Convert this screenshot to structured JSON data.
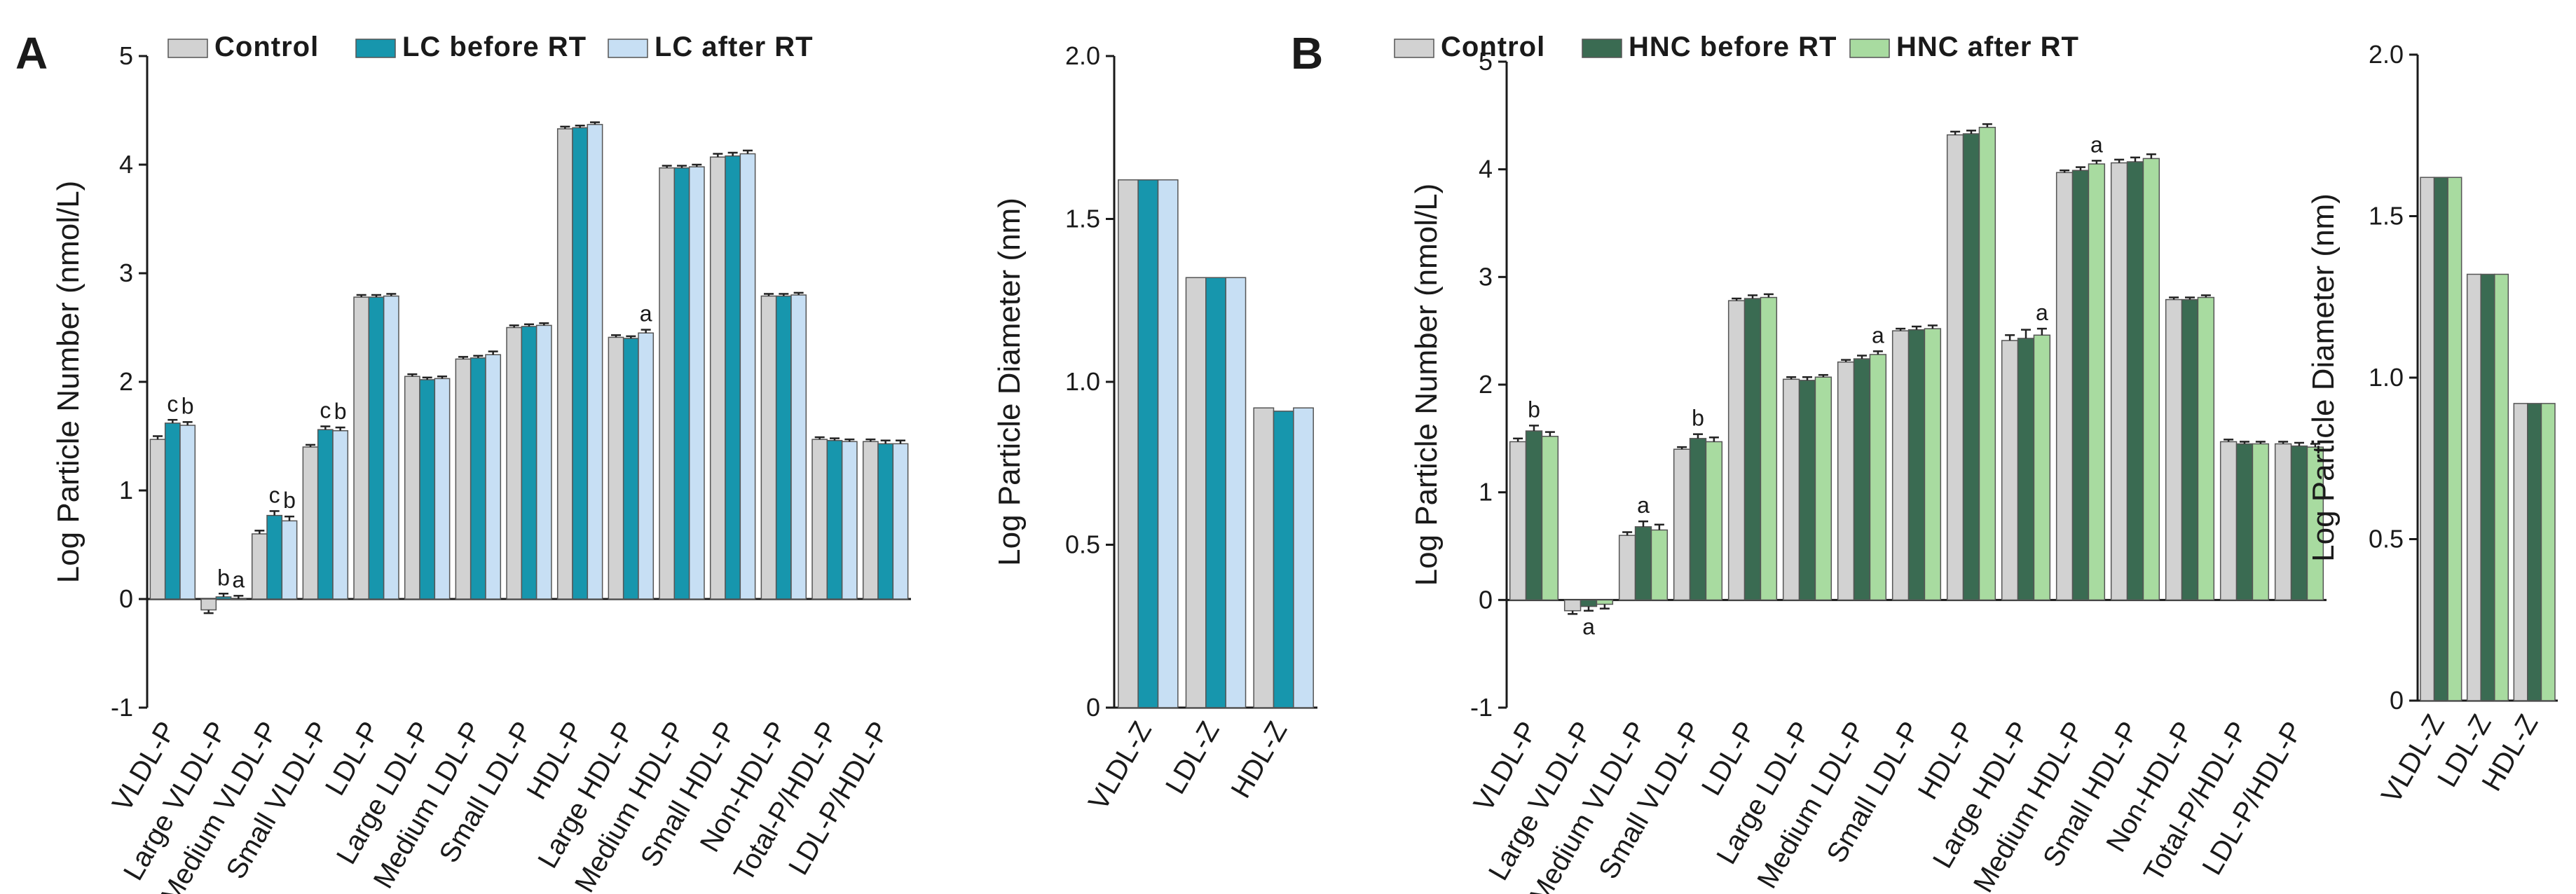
{
  "panels": [
    {
      "letter": "A",
      "legend": [
        "Control",
        "LC before RT",
        "LC after RT"
      ],
      "colors": [
        "#d2d2d2",
        "#1796ad",
        "#c7dff4"
      ]
    },
    {
      "letter": "B",
      "legend": [
        "Control",
        "HNC before RT",
        "HNC after RT"
      ],
      "colors": [
        "#d2d2d2",
        "#3a6b52",
        "#a8dba0"
      ]
    }
  ],
  "chart_data": [
    {
      "panel": "A",
      "type": "bar",
      "xlabel": "",
      "ylabel": "Log Particle Number (nmol/L)",
      "ylim": [
        -1,
        5
      ],
      "yticks": [
        "-1",
        "0",
        "1",
        "2",
        "3",
        "4",
        "5"
      ],
      "categories": [
        "VLDL-P",
        "Large VLDL-P",
        "Medium VLDL-P",
        "Small VLDL-P",
        "LDL-P",
        "Large LDL-P",
        "Medium LDL-P",
        "Small LDL-P",
        "HDL-P",
        "Large HDL-P",
        "Medium HDL-P",
        "Small HDL-P",
        "Non-HDL-P",
        "Total-P/HDL-P",
        "LDL-P/HDL-P"
      ],
      "series": [
        {
          "name": "Control",
          "values": [
            1.47,
            -0.1,
            0.6,
            1.4,
            2.78,
            2.05,
            2.21,
            2.5,
            4.33,
            2.41,
            3.97,
            4.07,
            2.79,
            1.47,
            1.45
          ],
          "errors": [
            0.03,
            0.03,
            0.03,
            0.02,
            0.02,
            0.02,
            0.02,
            0.02,
            0.02,
            0.02,
            0.02,
            0.03,
            0.02,
            0.02,
            0.02
          ]
        },
        {
          "name": "LC before RT",
          "values": [
            1.62,
            0.02,
            0.77,
            1.56,
            2.78,
            2.02,
            2.22,
            2.51,
            4.34,
            2.4,
            3.97,
            4.08,
            2.79,
            1.46,
            1.43
          ],
          "errors": [
            0.03,
            0.03,
            0.04,
            0.03,
            0.02,
            0.02,
            0.02,
            0.02,
            0.02,
            0.02,
            0.02,
            0.03,
            0.02,
            0.02,
            0.03
          ]
        },
        {
          "name": "LC after RT",
          "values": [
            1.6,
            0.0,
            0.72,
            1.55,
            2.79,
            2.03,
            2.25,
            2.52,
            4.37,
            2.45,
            3.98,
            4.1,
            2.8,
            1.45,
            1.43
          ],
          "errors": [
            0.03,
            0.03,
            0.04,
            0.03,
            0.02,
            0.02,
            0.03,
            0.02,
            0.02,
            0.03,
            0.02,
            0.03,
            0.02,
            0.02,
            0.03
          ]
        }
      ],
      "annotations": [
        {
          "category": "VLDL-P",
          "series": 1,
          "text": "c"
        },
        {
          "category": "VLDL-P",
          "series": 2,
          "text": "b"
        },
        {
          "category": "Large VLDL-P",
          "series": 1,
          "text": "b"
        },
        {
          "category": "Large VLDL-P",
          "series": 2,
          "text": "a"
        },
        {
          "category": "Medium VLDL-P",
          "series": 1,
          "text": "c"
        },
        {
          "category": "Medium VLDL-P",
          "series": 2,
          "text": "b"
        },
        {
          "category": "Small VLDL-P",
          "series": 1,
          "text": "c"
        },
        {
          "category": "Small VLDL-P",
          "series": 2,
          "text": "b"
        },
        {
          "category": "Large HDL-P",
          "series": 2,
          "text": "a"
        }
      ]
    },
    {
      "panel": "A",
      "type": "bar",
      "xlabel": "",
      "ylabel": "Log Particle Diameter (nm)",
      "ylim": [
        0,
        2.0
      ],
      "yticks": [
        "0",
        "0.5",
        "1.0",
        "1.5",
        "2.0"
      ],
      "categories": [
        "VLDL-Z",
        "LDL-Z",
        "HDL-Z"
      ],
      "series": [
        {
          "name": "Control",
          "values": [
            1.62,
            1.32,
            0.92
          ]
        },
        {
          "name": "LC before RT",
          "values": [
            1.62,
            1.32,
            0.91
          ]
        },
        {
          "name": "LC after RT",
          "values": [
            1.62,
            1.32,
            0.92
          ]
        }
      ],
      "annotations": []
    },
    {
      "panel": "B",
      "type": "bar",
      "xlabel": "",
      "ylabel": "Log Particle Number (nmol/L)",
      "ylim": [
        -1,
        5
      ],
      "yticks": [
        "-1",
        "0",
        "1",
        "2",
        "3",
        "4",
        "5"
      ],
      "categories": [
        "VLDL-P",
        "Large VLDL-P",
        "Medium VLDL-P",
        "Small VLDL-P",
        "LDL-P",
        "Large LDL-P",
        "Medium LDL-P",
        "Small LDL-P",
        "HDL-P",
        "Large HDL-P",
        "Medium HDL-P",
        "Small HDL-P",
        "Non-HDL-P",
        "Total-P/HDL-P",
        "LDL-P/HDL-P"
      ],
      "series": [
        {
          "name": "Control",
          "values": [
            1.47,
            -0.1,
            0.6,
            1.4,
            2.78,
            2.05,
            2.21,
            2.5,
            4.32,
            2.41,
            3.97,
            4.06,
            2.79,
            1.47,
            1.45
          ],
          "errors": [
            0.03,
            0.03,
            0.03,
            0.02,
            0.02,
            0.02,
            0.02,
            0.02,
            0.03,
            0.05,
            0.02,
            0.03,
            0.02,
            0.02,
            0.02
          ]
        },
        {
          "name": "HNC before RT",
          "values": [
            1.57,
            -0.06,
            0.68,
            1.5,
            2.8,
            2.04,
            2.24,
            2.51,
            4.33,
            2.43,
            3.99,
            4.07,
            2.79,
            1.45,
            1.43
          ],
          "errors": [
            0.05,
            0.04,
            0.05,
            0.04,
            0.03,
            0.03,
            0.03,
            0.03,
            0.03,
            0.08,
            0.03,
            0.04,
            0.02,
            0.02,
            0.03
          ]
        },
        {
          "name": "HNC after RT",
          "values": [
            1.52,
            -0.04,
            0.65,
            1.47,
            2.81,
            2.07,
            2.28,
            2.52,
            4.39,
            2.46,
            4.05,
            4.1,
            2.81,
            1.45,
            1.42
          ],
          "errors": [
            0.04,
            0.04,
            0.05,
            0.04,
            0.03,
            0.02,
            0.03,
            0.03,
            0.03,
            0.06,
            0.03,
            0.04,
            0.02,
            0.02,
            0.03
          ]
        }
      ],
      "annotations": [
        {
          "category": "VLDL-P",
          "series": 1,
          "text": "b"
        },
        {
          "category": "Large VLDL-P",
          "series": 1,
          "text": "a"
        },
        {
          "category": "Medium VLDL-P",
          "series": 1,
          "text": "a"
        },
        {
          "category": "Small VLDL-P",
          "series": 1,
          "text": "b"
        },
        {
          "category": "Medium LDL-P",
          "series": 2,
          "text": "a"
        },
        {
          "category": "Large HDL-P",
          "series": 2,
          "text": "a"
        },
        {
          "category": "Medium HDL-P",
          "series": 2,
          "text": "a"
        }
      ]
    },
    {
      "panel": "B",
      "type": "bar",
      "xlabel": "",
      "ylabel": "Log Particle Diameter (nm)",
      "ylim": [
        0,
        2.0
      ],
      "yticks": [
        "0",
        "0.5",
        "1.0",
        "1.5",
        "2.0"
      ],
      "categories": [
        "VLDL-Z",
        "LDL-Z",
        "HDL-Z"
      ],
      "series": [
        {
          "name": "Control",
          "values": [
            1.62,
            1.32,
            0.92
          ]
        },
        {
          "name": "HNC before RT",
          "values": [
            1.62,
            1.32,
            0.92
          ]
        },
        {
          "name": "HNC after RT",
          "values": [
            1.62,
            1.32,
            0.92
          ]
        }
      ],
      "annotations": []
    }
  ]
}
